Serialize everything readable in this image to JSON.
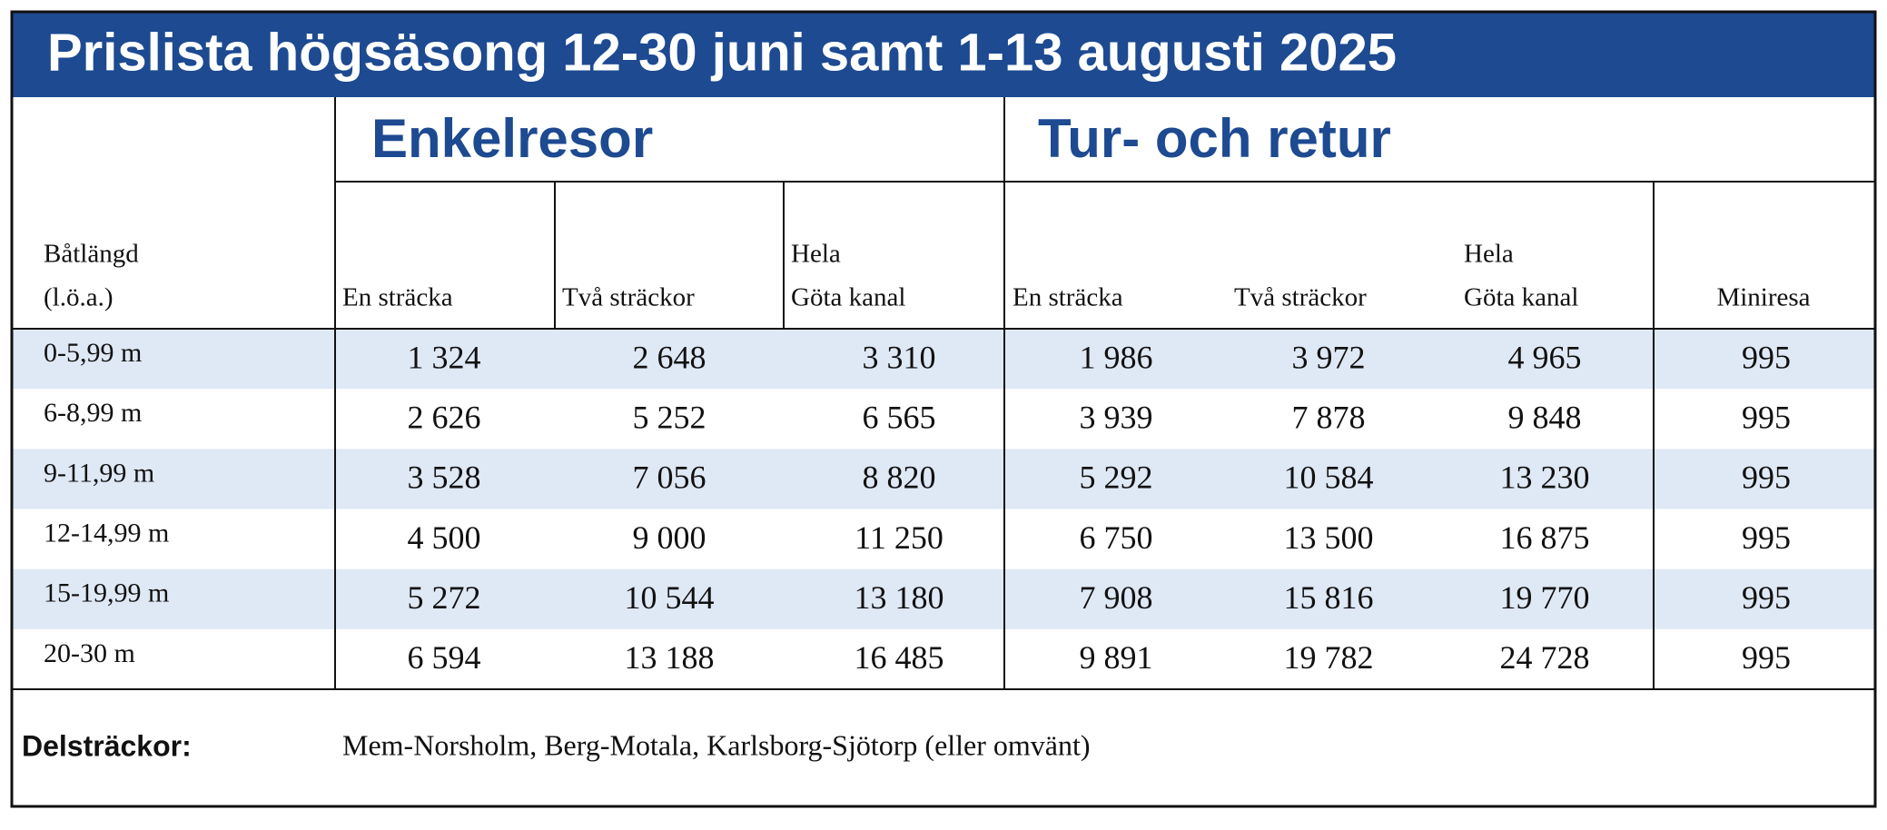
{
  "header": {
    "title": "Prislista högsäsong 12-30 juni samt 1-13 augusti 2025"
  },
  "table": {
    "groups": [
      "Enkelresor",
      "Tur- och retur"
    ],
    "columns": [
      [
        "Båtlängd",
        "(l.ö.a.)"
      ],
      [
        "En sträcka"
      ],
      [
        "Två sträckor"
      ],
      [
        "Hela",
        "Göta kanal"
      ],
      [
        "En sträcka"
      ],
      [
        "Två sträckor"
      ],
      [
        "Hela",
        "Göta kanal"
      ],
      [
        "Miniresa"
      ]
    ],
    "rows": [
      [
        "0-5,99 m",
        "1 324",
        "2 648",
        "3 310",
        "1 986",
        "3 972",
        "4 965",
        "995"
      ],
      [
        "6-8,99 m",
        "2 626",
        "5 252",
        "6 565",
        "3 939",
        "7 878",
        "9 848",
        "995"
      ],
      [
        "9-11,99 m",
        "3 528",
        "7 056",
        "8 820",
        "5 292",
        "10 584",
        "13 230",
        "995"
      ],
      [
        "12-14,99 m",
        "4 500",
        "9 000",
        "11 250",
        "6 750",
        "13 500",
        "16 875",
        "995"
      ],
      [
        "15-19,99 m",
        "5 272",
        "10 544",
        "13 180",
        "7 908",
        "15 816",
        "19 770",
        "995"
      ],
      [
        "20-30 m",
        "6 594",
        "13 188",
        "16 485",
        "9 891",
        "19 782",
        "24 728",
        "995"
      ]
    ]
  },
  "footer": {
    "label": "Delsträckor:",
    "text": "Mem-Norsholm, Berg-Motala, Karlsborg-Sjötorp (eller omvänt)"
  }
}
